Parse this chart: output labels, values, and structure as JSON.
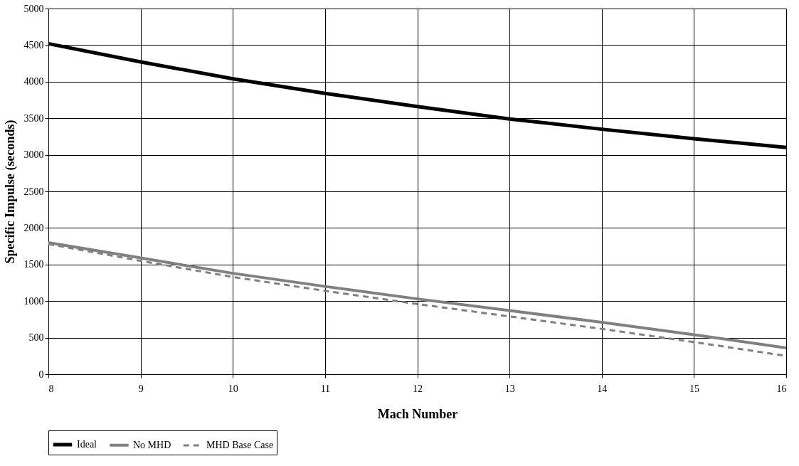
{
  "chart_data": {
    "type": "line",
    "xlabel": "Mach Number",
    "ylabel": "Specific Impulse (seconds)",
    "x": [
      8,
      9,
      10,
      11,
      12,
      13,
      14,
      15,
      16
    ],
    "xlim": [
      8,
      16
    ],
    "xticks": [
      8,
      9,
      10,
      11,
      12,
      13,
      14,
      15,
      16
    ],
    "ylim": [
      0,
      5000
    ],
    "yticks": [
      0,
      500,
      1000,
      1500,
      2000,
      2500,
      3000,
      3500,
      4000,
      4500,
      5000
    ],
    "grid": true,
    "legend": "bottom",
    "marker": "none",
    "series": [
      {
        "name": "Ideal",
        "color": "#000000",
        "line_style": "solid",
        "values": [
          4520,
          4270,
          4040,
          3840,
          3660,
          3490,
          3350,
          3220,
          3100
        ]
      },
      {
        "name": "No MHD",
        "color": "#808080",
        "line_style": "solid",
        "values": [
          1800,
          1590,
          1380,
          1200,
          1030,
          870,
          710,
          540,
          360
        ]
      },
      {
        "name": "MHD Base Case",
        "color": "#808080",
        "line_style": "dashed",
        "values": [
          1780,
          1550,
          1330,
          1140,
          960,
          790,
          620,
          440,
          250
        ]
      }
    ]
  }
}
